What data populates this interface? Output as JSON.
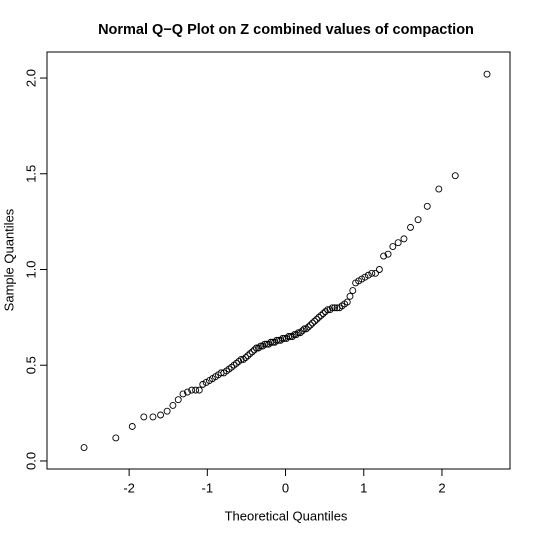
{
  "chart_data": {
    "type": "scatter",
    "title": "Normal Q−Q Plot on Z combined values of compaction",
    "x_label": "Theoretical Quantiles",
    "y_label": "Sample Quantiles",
    "xlim": [
      -3.05,
      2.87
    ],
    "ylim": [
      -0.042,
      2.136
    ],
    "xticks": [
      -2,
      -1,
      0,
      1,
      2
    ],
    "yticks": [
      {
        "value": 0,
        "label": "0.0"
      },
      {
        "value": 0.5,
        "label": "0.5"
      },
      {
        "value": 1,
        "label": "1.0"
      },
      {
        "value": 1.5,
        "label": "1.5"
      },
      {
        "value": 2,
        "label": "2.0"
      }
    ],
    "color": "#000000",
    "series": [
      {
        "x": [
          -2.576,
          -2.17,
          -1.96,
          -1.812,
          -1.695,
          -1.598,
          -1.514,
          -1.44,
          -1.372,
          -1.311,
          -1.254,
          -1.2,
          -1.15,
          -1.103,
          -1.058,
          -1.015,
          -0.974,
          -0.935,
          -0.896,
          -0.86,
          -0.824,
          -0.789,
          -0.755,
          -0.722,
          -0.69,
          -0.659,
          -0.628,
          -0.598,
          -0.568,
          -0.539,
          -0.51,
          -0.482,
          -0.454,
          -0.426,
          -0.399,
          -0.372,
          -0.345,
          -0.319,
          -0.292,
          -0.266,
          -0.24,
          -0.215,
          -0.189,
          -0.164,
          -0.138,
          -0.113,
          -0.088,
          -0.063,
          -0.038,
          -0.013,
          0.013,
          0.038,
          0.063,
          0.088,
          0.113,
          0.138,
          0.164,
          0.189,
          0.215,
          0.24,
          0.266,
          0.292,
          0.319,
          0.345,
          0.372,
          0.399,
          0.426,
          0.454,
          0.482,
          0.51,
          0.539,
          0.568,
          0.598,
          0.628,
          0.659,
          0.69,
          0.722,
          0.755,
          0.789,
          0.824,
          0.86,
          0.896,
          0.935,
          0.974,
          1.015,
          1.058,
          1.103,
          1.15,
          1.2,
          1.254,
          1.311,
          1.372,
          1.44,
          1.514,
          1.598,
          1.695,
          1.812,
          1.96,
          2.17,
          2.576
        ],
        "values": [
          0.07,
          0.12,
          0.18,
          0.23,
          0.23,
          0.24,
          0.26,
          0.29,
          0.32,
          0.35,
          0.36,
          0.37,
          0.37,
          0.37,
          0.4,
          0.41,
          0.42,
          0.43,
          0.44,
          0.45,
          0.46,
          0.46,
          0.47,
          0.48,
          0.49,
          0.5,
          0.51,
          0.52,
          0.53,
          0.53,
          0.54,
          0.55,
          0.56,
          0.57,
          0.58,
          0.59,
          0.59,
          0.6,
          0.6,
          0.61,
          0.61,
          0.61,
          0.62,
          0.62,
          0.62,
          0.63,
          0.63,
          0.63,
          0.64,
          0.64,
          0.64,
          0.65,
          0.65,
          0.65,
          0.66,
          0.66,
          0.67,
          0.67,
          0.68,
          0.69,
          0.69,
          0.7,
          0.71,
          0.72,
          0.73,
          0.74,
          0.75,
          0.76,
          0.77,
          0.78,
          0.79,
          0.79,
          0.8,
          0.8,
          0.8,
          0.8,
          0.81,
          0.82,
          0.83,
          0.86,
          0.89,
          0.93,
          0.94,
          0.95,
          0.96,
          0.97,
          0.98,
          0.98,
          1.0,
          1.07,
          1.08,
          1.12,
          1.14,
          1.16,
          1.22,
          1.26,
          1.33,
          1.42,
          1.49,
          2.02
        ]
      }
    ]
  }
}
